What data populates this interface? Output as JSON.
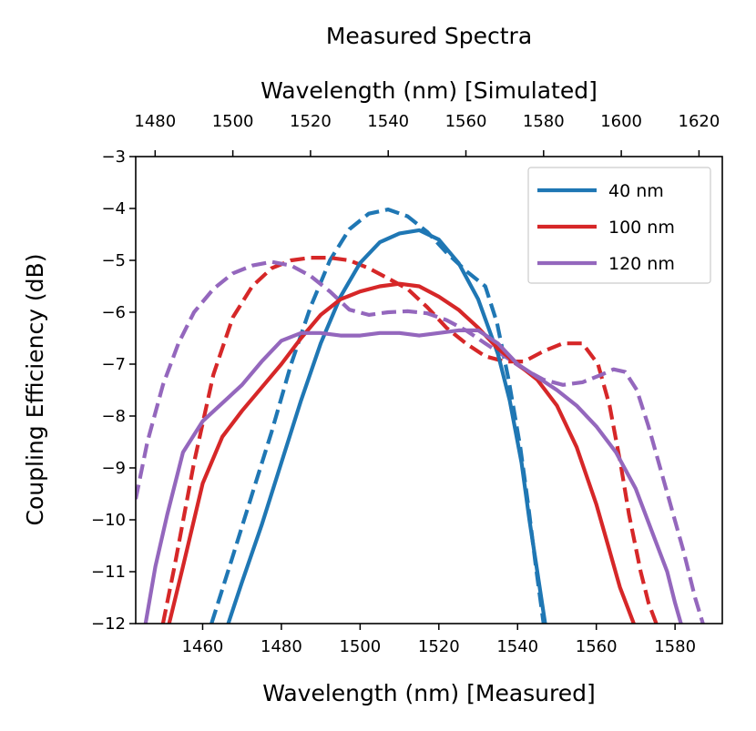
{
  "chart_data": {
    "type": "line",
    "title": "Measured Spectra",
    "xlabel": "Wavelength (nm) [Measured]",
    "xlabel_top": "Wavelength (nm) [Simulated]",
    "ylabel": "Coupling Efficiency (dB)",
    "xlim": [
      1443,
      1592
    ],
    "xlim_top": [
      1475,
      1626
    ],
    "ylim": [
      -12,
      -3
    ],
    "xticks": [
      1460,
      1480,
      1500,
      1520,
      1540,
      1560,
      1580
    ],
    "xticks_top": [
      1480,
      1500,
      1520,
      1540,
      1560,
      1580,
      1600,
      1620
    ],
    "yticks": [
      -12,
      -11,
      -10,
      -9,
      -8,
      -7,
      -6,
      -5,
      -4,
      -3
    ],
    "ytick_labels": [
      "−12",
      "−11",
      "−10",
      "−9",
      "−8",
      "−7",
      "−6",
      "−5",
      "−4",
      "−3"
    ],
    "grid": false,
    "legend_position": "top-right",
    "series": [
      {
        "name": "40 nm",
        "label": "40 nm",
        "color": "#1f77b4",
        "style": "solid",
        "axis": "bottom",
        "in_legend": true,
        "x": [
          1466.5,
          1470,
          1475,
          1480,
          1485,
          1490,
          1495,
          1500,
          1505,
          1510,
          1515,
          1520,
          1525,
          1530,
          1535,
          1538,
          1541,
          1543,
          1545,
          1547
        ],
        "y": [
          -12,
          -11.2,
          -10.1,
          -8.9,
          -7.7,
          -6.6,
          -5.7,
          -5.05,
          -4.65,
          -4.48,
          -4.42,
          -4.6,
          -5.05,
          -5.75,
          -6.8,
          -7.7,
          -8.9,
          -10.0,
          -11.0,
          -12
        ]
      },
      {
        "name": "40 nm simulated",
        "label": "",
        "color": "#1f77b4",
        "style": "dashed",
        "axis": "top",
        "in_legend": false,
        "x": [
          1494.5,
          1500,
          1505,
          1510,
          1515,
          1520,
          1525,
          1530,
          1535,
          1540,
          1545,
          1550,
          1555,
          1560,
          1565,
          1568,
          1571,
          1574,
          1576,
          1578,
          1580
        ],
        "y": [
          -12,
          -10.7,
          -9.5,
          -8.3,
          -7.0,
          -5.9,
          -5.0,
          -4.4,
          -4.1,
          -4.02,
          -4.15,
          -4.45,
          -4.85,
          -5.2,
          -5.5,
          -6.2,
          -7.3,
          -8.6,
          -9.7,
          -10.9,
          -12
        ]
      },
      {
        "name": "100 nm",
        "label": "100 nm",
        "color": "#d62728",
        "style": "solid",
        "axis": "bottom",
        "in_legend": true,
        "x": [
          1451.5,
          1455,
          1460,
          1465,
          1470,
          1475,
          1480,
          1485,
          1490,
          1495,
          1500,
          1505,
          1510,
          1515,
          1520,
          1525,
          1530,
          1535,
          1540,
          1545,
          1550,
          1555,
          1560,
          1563,
          1566,
          1568,
          1569.5
        ],
        "y": [
          -12,
          -10.9,
          -9.3,
          -8.4,
          -7.9,
          -7.45,
          -7.0,
          -6.5,
          -6.05,
          -5.75,
          -5.6,
          -5.5,
          -5.45,
          -5.5,
          -5.7,
          -5.95,
          -6.3,
          -6.7,
          -7.0,
          -7.3,
          -7.8,
          -8.6,
          -9.7,
          -10.5,
          -11.3,
          -11.7,
          -12
        ]
      },
      {
        "name": "100 nm simulated",
        "label": "",
        "color": "#d62728",
        "style": "dashed",
        "axis": "top",
        "in_legend": false,
        "x": [
          1482,
          1485,
          1490,
          1495,
          1500,
          1505,
          1510,
          1515,
          1520,
          1525,
          1530,
          1535,
          1540,
          1545,
          1550,
          1555,
          1560,
          1565,
          1570,
          1575,
          1580,
          1585,
          1590,
          1594,
          1597,
          1600,
          1602,
          1605,
          1607,
          1609
        ],
        "y": [
          -12,
          -10.9,
          -8.9,
          -7.2,
          -6.1,
          -5.5,
          -5.15,
          -5.0,
          -4.95,
          -4.95,
          -5.0,
          -5.15,
          -5.35,
          -5.55,
          -5.9,
          -6.3,
          -6.6,
          -6.85,
          -6.95,
          -6.95,
          -6.75,
          -6.6,
          -6.6,
          -7.0,
          -7.8,
          -9.0,
          -9.9,
          -11.0,
          -11.6,
          -12
        ]
      },
      {
        "name": "120 nm",
        "label": "120 nm",
        "color": "#9467bd",
        "style": "solid",
        "axis": "bottom",
        "in_legend": true,
        "x": [
          1445.5,
          1448,
          1451,
          1455,
          1460,
          1465,
          1470,
          1475,
          1480,
          1485,
          1490,
          1495,
          1500,
          1505,
          1510,
          1515,
          1520,
          1525,
          1530,
          1535,
          1540,
          1545,
          1550,
          1555,
          1560,
          1565,
          1570,
          1575,
          1578,
          1580,
          1581.5
        ],
        "y": [
          -12,
          -10.9,
          -9.9,
          -8.7,
          -8.1,
          -7.75,
          -7.4,
          -6.95,
          -6.55,
          -6.4,
          -6.4,
          -6.45,
          -6.45,
          -6.4,
          -6.4,
          -6.45,
          -6.4,
          -6.35,
          -6.35,
          -6.6,
          -7.0,
          -7.25,
          -7.5,
          -7.8,
          -8.2,
          -8.7,
          -9.4,
          -10.4,
          -11.0,
          -11.6,
          -12
        ]
      },
      {
        "name": "120 nm simulated",
        "label": "",
        "color": "#9467bd",
        "style": "dashed",
        "axis": "top",
        "in_legend": false,
        "x": [
          1475,
          1478,
          1482,
          1486,
          1490,
          1495,
          1500,
          1505,
          1510,
          1515,
          1520,
          1525,
          1530,
          1535,
          1540,
          1545,
          1550,
          1555,
          1560,
          1565,
          1570,
          1575,
          1580,
          1585,
          1590,
          1595,
          1598,
          1601,
          1604,
          1607,
          1610,
          1613,
          1616,
          1619,
          1621
        ],
        "y": [
          -9.6,
          -8.5,
          -7.4,
          -6.6,
          -6.0,
          -5.55,
          -5.25,
          -5.1,
          -5.03,
          -5.1,
          -5.3,
          -5.6,
          -5.95,
          -6.05,
          -6.0,
          -5.98,
          -6.02,
          -6.15,
          -6.35,
          -6.6,
          -6.85,
          -7.1,
          -7.3,
          -7.4,
          -7.35,
          -7.2,
          -7.1,
          -7.15,
          -7.5,
          -8.2,
          -9.0,
          -9.8,
          -10.6,
          -11.5,
          -12
        ]
      }
    ]
  }
}
